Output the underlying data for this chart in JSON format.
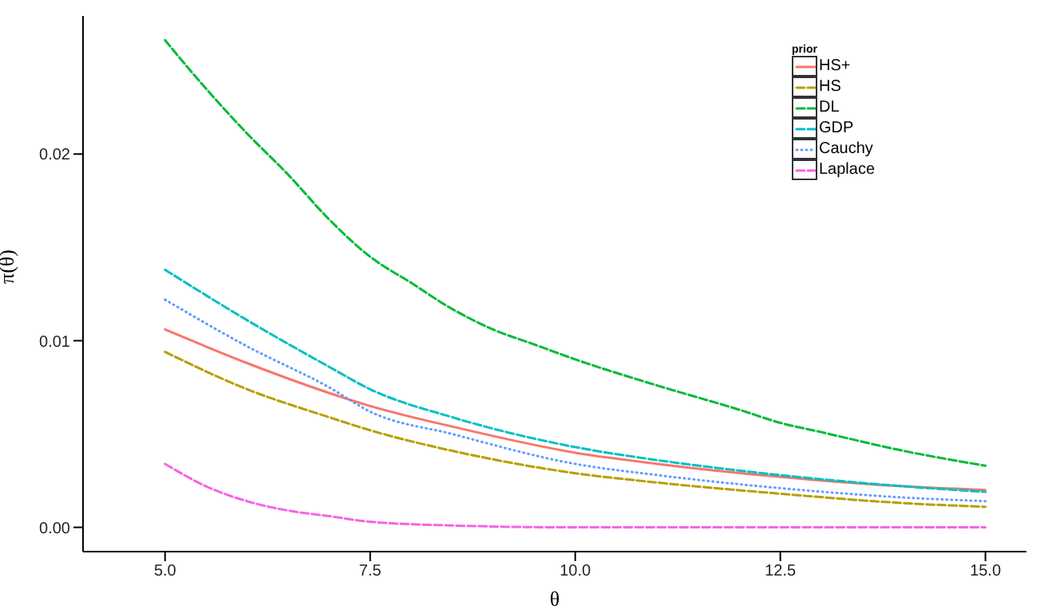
{
  "chart_data": {
    "type": "line",
    "xlabel": "θ",
    "ylabel": "π(θ)",
    "legend_title": "prior",
    "legend": "top right",
    "grid": false,
    "xlim": [
      4,
      15.5
    ],
    "xticks": [
      {
        "value": 5,
        "label": "5.0"
      },
      {
        "value": 7.5,
        "label": "7.5"
      },
      {
        "value": 10,
        "label": "10.0"
      },
      {
        "value": 12.5,
        "label": "12.5"
      },
      {
        "value": 15,
        "label": "15.0"
      }
    ],
    "ylim": [
      -0.0013,
      0.0274
    ],
    "yticks": [
      {
        "value": 0,
        "label": "0.00"
      },
      {
        "value": 0.01,
        "label": "0.01"
      },
      {
        "value": 0.02,
        "label": "0.02"
      }
    ],
    "series": [
      {
        "name": "HS+",
        "color": "#f8766d",
        "line_style": "solid",
        "x": [
          5,
          6,
          7,
          7.5,
          8.5,
          10,
          11,
          12.5,
          14,
          15
        ],
        "values": [
          0.0106,
          0.0088,
          0.0072,
          0.0065,
          0.0054,
          0.004,
          0.0034,
          0.0027,
          0.0022,
          0.002
        ]
      },
      {
        "name": "HS",
        "color": "#b79f00",
        "line_style": "dashed",
        "x": [
          5,
          6,
          7,
          7.5,
          8.5,
          10,
          11,
          12.5,
          14,
          15
        ],
        "values": [
          0.0094,
          0.0074,
          0.0059,
          0.0052,
          0.0041,
          0.0029,
          0.0024,
          0.0018,
          0.0013,
          0.0011
        ]
      },
      {
        "name": "DL",
        "color": "#00ba38",
        "line_style": "dashed",
        "x": [
          5,
          5.5,
          6,
          6.5,
          7,
          7.5,
          8,
          8.5,
          9,
          9.5,
          10,
          11,
          12,
          12.5,
          13,
          14,
          15
        ],
        "values": [
          0.0261,
          0.0235,
          0.0211,
          0.0189,
          0.0165,
          0.0145,
          0.0131,
          0.0117,
          0.0106,
          0.0098,
          0.009,
          0.0076,
          0.0063,
          0.0056,
          0.0051,
          0.0041,
          0.0033
        ]
      },
      {
        "name": "GDP",
        "color": "#00bfc4",
        "line_style": "dashed",
        "x": [
          5,
          6,
          7,
          7.5,
          8.5,
          10,
          11,
          12.5,
          14,
          15
        ],
        "values": [
          0.0138,
          0.0111,
          0.0086,
          0.0074,
          0.0059,
          0.0043,
          0.0036,
          0.0028,
          0.0022,
          0.0019
        ]
      },
      {
        "name": "Cauchy",
        "color": "#619cff",
        "line_style": "dotted",
        "x": [
          5,
          6,
          7,
          7.5,
          8.5,
          10,
          11,
          12.5,
          14,
          15
        ],
        "values": [
          0.0122,
          0.0097,
          0.0075,
          0.0062,
          0.005,
          0.0034,
          0.0028,
          0.0021,
          0.0016,
          0.0014
        ]
      },
      {
        "name": "Laplace",
        "color": "#f564e3",
        "line_style": "dashed",
        "x": [
          5,
          5.5,
          6,
          6.5,
          7,
          7.5,
          8.5,
          10,
          12.5,
          15
        ],
        "values": [
          0.0034,
          0.0022,
          0.0014,
          0.0009,
          0.0006,
          0.0003,
          0.0001,
          0,
          0,
          0
        ]
      }
    ]
  }
}
